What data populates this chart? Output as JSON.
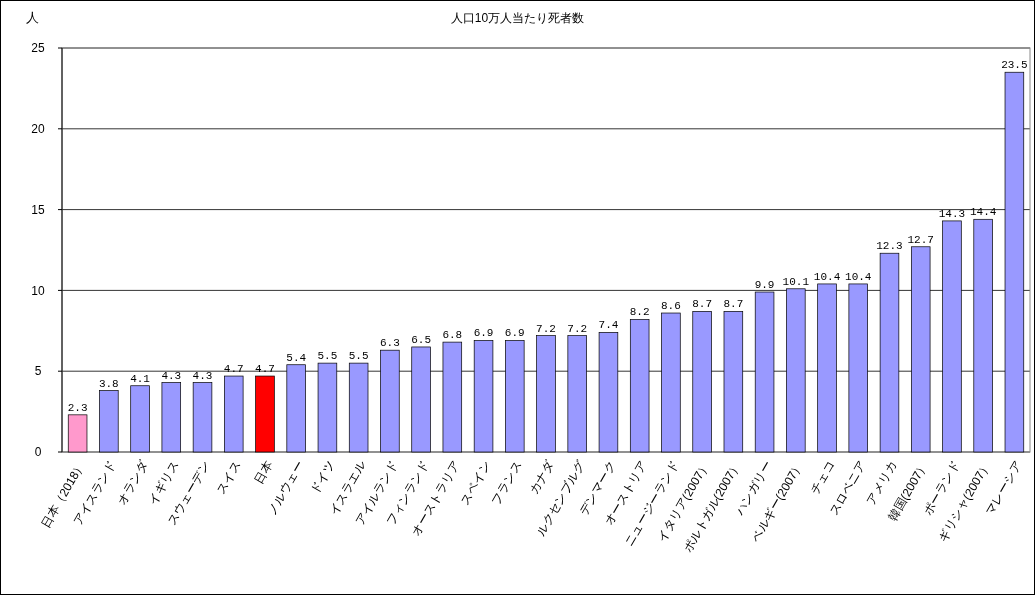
{
  "chart_data": {
    "type": "bar",
    "title": "人口10万人当たり死者数",
    "ylabel": "人",
    "categories": [
      "日本（2018）",
      "アイスランド",
      "オランダ",
      "イギリス",
      "スウェーデン",
      "スイス",
      "日本",
      "ノルウェー",
      "ドイツ",
      "イスラエル",
      "アイルランド",
      "フィンランド",
      "オーストラリア",
      "スペイン",
      "フランス",
      "カナダ",
      "ルクセンブルグ",
      "デンマーク",
      "オーストリア",
      "ニュージーランド",
      "イタリア(2007）",
      "ポルトガル(2007）",
      "ハンガリー",
      "ベルギー(2007）",
      "チェコ",
      "スロベニア",
      "アメリカ",
      "韓国(2007）",
      "ポーランド",
      "ギリシャ(2007）",
      "マレーシア"
    ],
    "values": [
      2.3,
      3.8,
      4.1,
      4.3,
      4.3,
      4.7,
      4.7,
      5.4,
      5.5,
      5.5,
      6.3,
      6.5,
      6.8,
      6.9,
      6.9,
      7.2,
      7.2,
      7.4,
      8.2,
      8.6,
      8.7,
      8.7,
      9.9,
      10.1,
      10.4,
      10.4,
      12.3,
      12.7,
      14.3,
      14.4,
      23.5
    ],
    "colors": [
      "#ff99cc",
      "#9999ff",
      "#9999ff",
      "#9999ff",
      "#9999ff",
      "#9999ff",
      "#ff0000",
      "#9999ff",
      "#9999ff",
      "#9999ff",
      "#9999ff",
      "#9999ff",
      "#9999ff",
      "#9999ff",
      "#9999ff",
      "#9999ff",
      "#9999ff",
      "#9999ff",
      "#9999ff",
      "#9999ff",
      "#9999ff",
      "#9999ff",
      "#9999ff",
      "#9999ff",
      "#9999ff",
      "#9999ff",
      "#9999ff",
      "#9999ff",
      "#9999ff",
      "#9999ff",
      "#9999ff"
    ],
    "ylim": [
      0,
      25
    ],
    "yticks": [
      0,
      5,
      10,
      15,
      20,
      25
    ],
    "grid": "y",
    "data_labels": true
  }
}
